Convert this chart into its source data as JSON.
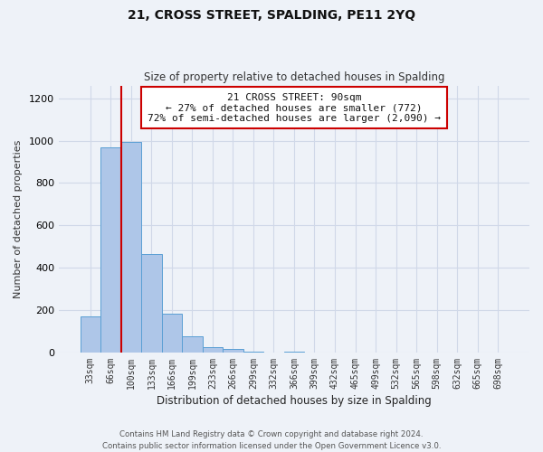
{
  "title": "21, CROSS STREET, SPALDING, PE11 2YQ",
  "subtitle": "Size of property relative to detached houses in Spalding",
  "xlabel": "Distribution of detached houses by size in Spalding",
  "ylabel": "Number of detached properties",
  "bar_labels": [
    "33sqm",
    "66sqm",
    "100sqm",
    "133sqm",
    "166sqm",
    "199sqm",
    "233sqm",
    "266sqm",
    "299sqm",
    "332sqm",
    "366sqm",
    "399sqm",
    "432sqm",
    "465sqm",
    "499sqm",
    "532sqm",
    "565sqm",
    "598sqm",
    "632sqm",
    "665sqm",
    "698sqm"
  ],
  "bar_values": [
    170,
    970,
    995,
    465,
    185,
    75,
    25,
    18,
    5,
    0,
    5,
    0,
    0,
    0,
    0,
    0,
    0,
    0,
    0,
    0,
    0
  ],
  "bar_color": "#aec6e8",
  "bar_edgecolor": "#5a9fd4",
  "vline_color": "#cc0000",
  "annotation_text": "21 CROSS STREET: 90sqm\n← 27% of detached houses are smaller (772)\n72% of semi-detached houses are larger (2,090) →",
  "annotation_box_color": "#ffffff",
  "annotation_box_edgecolor": "#cc0000",
  "ylim": [
    0,
    1260
  ],
  "yticks": [
    0,
    200,
    400,
    600,
    800,
    1000,
    1200
  ],
  "footer": "Contains HM Land Registry data © Crown copyright and database right 2024.\nContains public sector information licensed under the Open Government Licence v3.0.",
  "grid_color": "#d0d8e8",
  "background_color": "#eef2f8"
}
